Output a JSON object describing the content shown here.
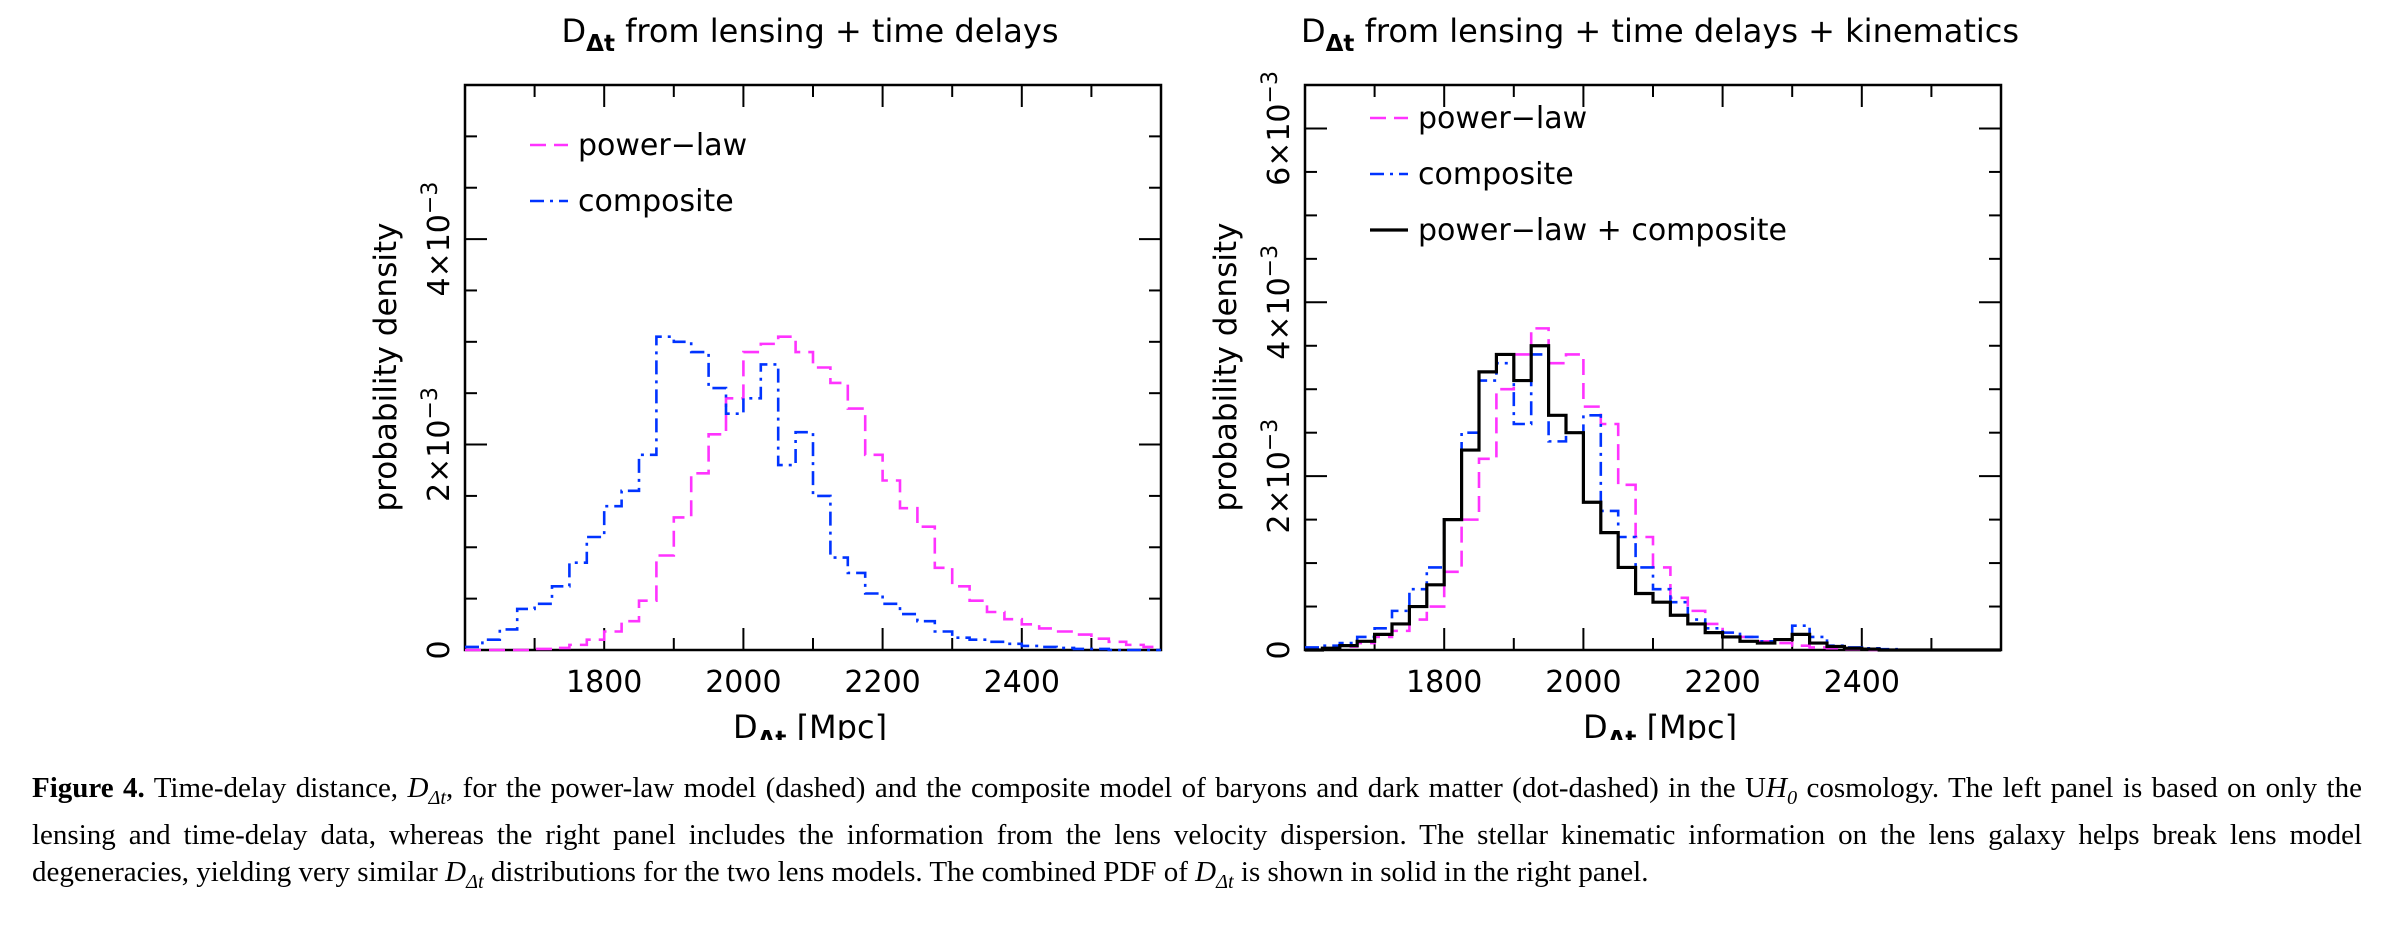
{
  "chart_data": [
    {
      "type": "line",
      "step": true,
      "title": {
        "main": "D",
        "sub": "Δt",
        "rest": " from lensing + time delays"
      },
      "xlabel": {
        "main": "D",
        "sub": "Δt",
        "rest": " [Mpc]"
      },
      "ylabel": "probability density",
      "xlim": [
        1600,
        2600
      ],
      "ylim": [
        0,
        0.0055
      ],
      "xticks": [
        1800,
        2000,
        2200,
        2400
      ],
      "xtick_labels": [
        "1800",
        "2000",
        "2200",
        "2400"
      ],
      "yticks": [
        0,
        0.002,
        0.004
      ],
      "ytick_labels": [
        {
          "main": "0",
          "exp": ""
        },
        {
          "main": "2×10",
          "exp": "−3"
        },
        {
          "main": "4×10",
          "exp": "−3"
        }
      ],
      "legend_position": "top-left",
      "bin_edges": [
        1600,
        1625,
        1650,
        1675,
        1700,
        1725,
        1750,
        1775,
        1800,
        1825,
        1850,
        1875,
        1900,
        1925,
        1950,
        1975,
        2000,
        2025,
        2050,
        2075,
        2100,
        2125,
        2150,
        2175,
        2200,
        2225,
        2250,
        2275,
        2300,
        2325,
        2350,
        2375,
        2400,
        2425,
        2450,
        2475,
        2500,
        2525,
        2550,
        2575,
        2600
      ],
      "series": [
        {
          "name": "power−law",
          "style": "dashed",
          "color": "#ff33ff",
          "values": [
            0,
            0,
            0,
            0,
            1e-05,
            2e-05,
            5e-05,
            0.0001,
            0.00018,
            0.00028,
            0.00048,
            0.00092,
            0.00129,
            0.00172,
            0.0021,
            0.00245,
            0.0029,
            0.00298,
            0.00305,
            0.0029,
            0.00275,
            0.0026,
            0.00235,
            0.0019,
            0.00165,
            0.00138,
            0.0012,
            0.0008,
            0.00062,
            0.00048,
            0.00037,
            0.0003,
            0.00025,
            0.00021,
            0.00018,
            0.00015,
            0.00011,
            8e-05,
            5e-05,
            3e-05
          ]
        },
        {
          "name": "composite",
          "style": "dot-dashed",
          "color": "#0033ff",
          "values": [
            3e-05,
            0.0001,
            0.0002,
            0.0004,
            0.00045,
            0.00062,
            0.00085,
            0.0011,
            0.0014,
            0.00155,
            0.0019,
            0.00305,
            0.003,
            0.0029,
            0.00255,
            0.0023,
            0.00245,
            0.00278,
            0.0018,
            0.00212,
            0.0015,
            0.0009,
            0.00075,
            0.00055,
            0.00045,
            0.00035,
            0.00028,
            0.00018,
            0.00012,
            0.0001,
            8e-05,
            6e-05,
            4e-05,
            3e-05,
            2e-05,
            1e-05,
            1e-05,
            0,
            0,
            0
          ]
        }
      ]
    },
    {
      "type": "line",
      "step": true,
      "title": {
        "main": "D",
        "sub": "Δt",
        "rest": " from lensing + time delays + kinematics"
      },
      "xlabel": {
        "main": "D",
        "sub": "Δt",
        "rest": " [Mpc]"
      },
      "ylabel": "probability density",
      "xlim": [
        1600,
        2600
      ],
      "ylim": [
        0,
        0.0065
      ],
      "xticks": [
        1800,
        2000,
        2200,
        2400
      ],
      "xtick_labels": [
        "1800",
        "2000",
        "2200",
        "2400"
      ],
      "yticks": [
        0,
        0.002,
        0.004,
        0.006
      ],
      "ytick_labels": [
        {
          "main": "0",
          "exp": ""
        },
        {
          "main": "2×10",
          "exp": "−3"
        },
        {
          "main": "4×10",
          "exp": "−3"
        },
        {
          "main": "6×10",
          "exp": "−3"
        }
      ],
      "legend_position": "top-left",
      "bin_edges": [
        1600,
        1625,
        1650,
        1675,
        1700,
        1725,
        1750,
        1775,
        1800,
        1825,
        1850,
        1875,
        1900,
        1925,
        1950,
        1975,
        2000,
        2025,
        2050,
        2075,
        2100,
        2125,
        2150,
        2175,
        2200,
        2225,
        2250,
        2275,
        2300,
        2325,
        2350,
        2375,
        2400,
        2425,
        2450,
        2475,
        2500,
        2525,
        2550,
        2575,
        2600
      ],
      "series": [
        {
          "name": "power−law",
          "style": "dashed",
          "color": "#ff33ff",
          "values": [
            0,
            2e-05,
            4e-05,
            8e-05,
            0.00015,
            0.00022,
            0.00035,
            0.0005,
            0.0009,
            0.0015,
            0.0022,
            0.003,
            0.0034,
            0.0037,
            0.0033,
            0.0034,
            0.0028,
            0.0026,
            0.0019,
            0.0013,
            0.00095,
            0.0006,
            0.00045,
            0.0003,
            0.0002,
            0.00015,
            0.0001,
            8e-05,
            5e-05,
            3e-05,
            2e-05,
            1e-05,
            0,
            0,
            0,
            0,
            0,
            0,
            0,
            0
          ]
        },
        {
          "name": "composite",
          "style": "dot-dashed",
          "color": "#0033ff",
          "values": [
            3e-05,
            5e-05,
            8e-05,
            0.00015,
            0.00025,
            0.00045,
            0.0007,
            0.00095,
            0.0015,
            0.0025,
            0.0031,
            0.0033,
            0.0026,
            0.0034,
            0.0024,
            0.0025,
            0.0027,
            0.0016,
            0.0013,
            0.00095,
            0.0007,
            0.00055,
            0.00035,
            0.00025,
            0.0002,
            0.00015,
            0.0001,
            0.00012,
            0.00028,
            0.00015,
            5e-05,
            3e-05,
            2e-05,
            1e-05,
            0,
            0,
            0,
            0,
            0,
            0
          ]
        },
        {
          "name": "power−law + composite",
          "style": "solid",
          "color": "#000000",
          "values": [
            0,
            2e-05,
            5e-05,
            0.0001,
            0.00018,
            0.0003,
            0.0005,
            0.00075,
            0.0015,
            0.0023,
            0.0032,
            0.0034,
            0.0031,
            0.0035,
            0.0027,
            0.0025,
            0.0017,
            0.00135,
            0.00095,
            0.00065,
            0.00055,
            0.0004,
            0.0003,
            0.0002,
            0.00015,
            0.0001,
            8e-05,
            0.00012,
            0.00018,
            8e-05,
            4e-05,
            2e-05,
            1e-05,
            0,
            0,
            0,
            0,
            0,
            0,
            0
          ]
        }
      ]
    }
  ],
  "caption": {
    "label": "Figure 4.",
    "s1": " Time-delay distance, ",
    "sym_main": "D",
    "sym_sub": "Δt",
    "s2": ", for the power-law model (dashed) and the composite model of baryons and dark matter (dot-dashed) in the U",
    "h_main": "H",
    "h_sub": "0",
    "s3": " cosmology. The left panel is based on only the lensing and time-delay data, whereas the right panel includes the information from the lens velocity dispersion. The stellar kinematic information on the lens galaxy helps break lens model degeneracies, yielding very similar ",
    "s4": " distributions for the two lens models. The combined PDF of ",
    "s5": " is shown in solid in the right panel."
  }
}
